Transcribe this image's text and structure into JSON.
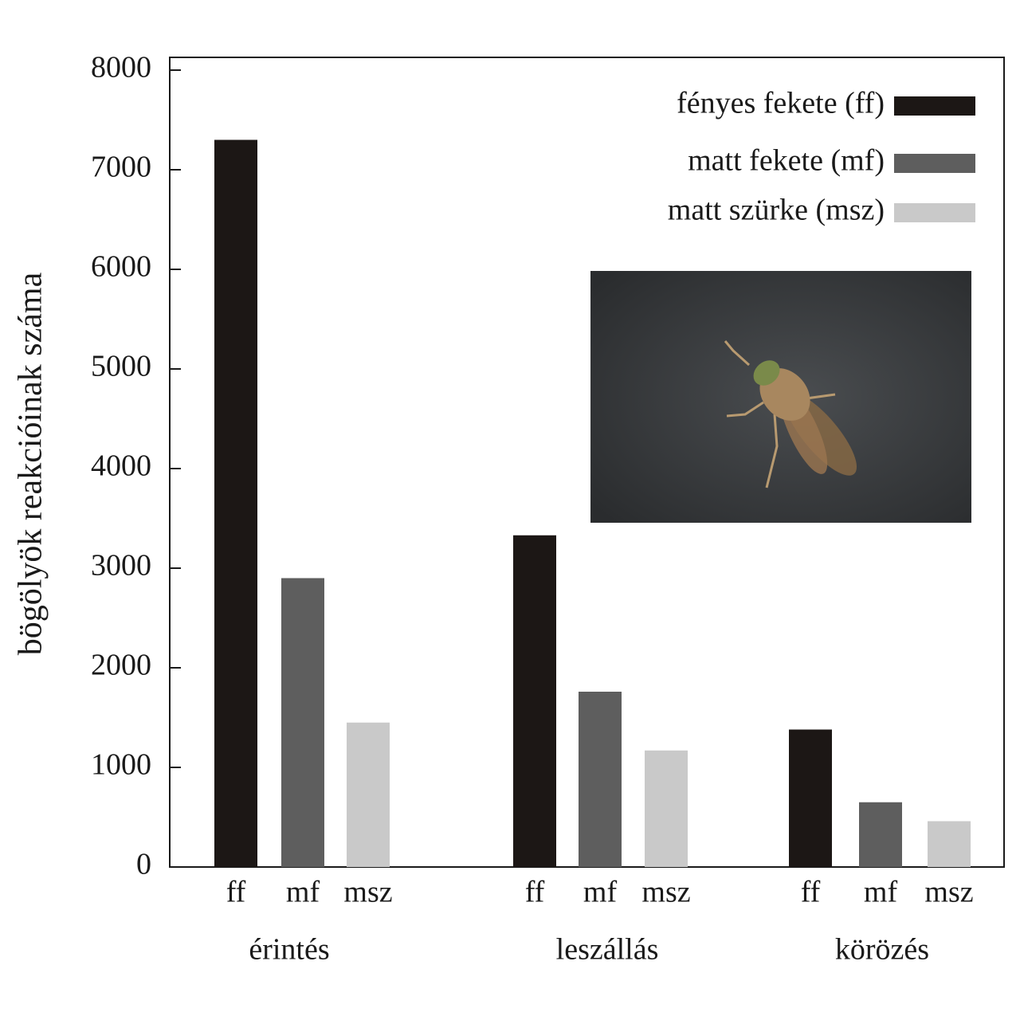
{
  "chart_data": {
    "type": "bar",
    "y_label": "bögölyök reakcióinak száma",
    "categories": [
      "érintés",
      "leszállás",
      "körözés"
    ],
    "series": [
      {
        "name": "fényes fekete (ff)",
        "short_label": "ff",
        "color": "#1c1715",
        "values": [
          7300,
          3330,
          1380
        ]
      },
      {
        "name": "matt fekete (mf)",
        "short_label": "mf",
        "color": "#5e5e5e",
        "values": [
          2900,
          1760,
          650
        ]
      },
      {
        "name": "matt szürke (msz)",
        "short_label": "msz",
        "color": "#c9c9c9",
        "values": [
          1450,
          1170,
          460
        ]
      }
    ],
    "ylim": [
      0,
      8000
    ],
    "yticks": [
      0,
      1000,
      2000,
      3000,
      4000,
      5000,
      6000,
      7000,
      8000
    ],
    "legend_position": "upper right"
  }
}
